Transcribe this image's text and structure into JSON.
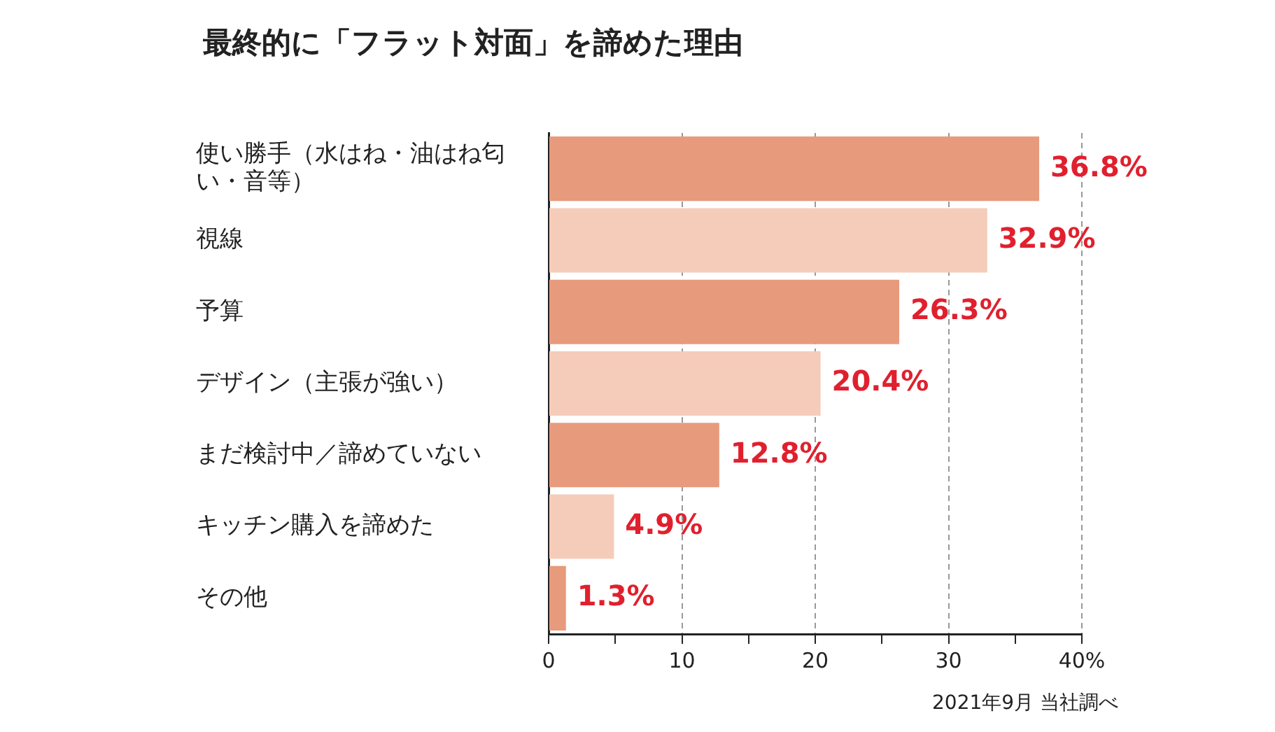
{
  "chart_data": {
    "type": "bar",
    "orientation": "horizontal",
    "title": "最終的に「フラット対面」を諦めた理由",
    "categories": [
      "使い勝手（水はね・油はね匂い・音等）",
      "視線",
      "予算",
      "デザイン（主張が強い）",
      "まだ検討中／諦めていない",
      "キッチン購入を諦めた",
      "その他"
    ],
    "values": [
      36.8,
      32.9,
      26.3,
      20.4,
      12.8,
      4.9,
      1.3
    ],
    "colors": [
      "#e89a7c",
      "#f5cbb9",
      "#e89a7c",
      "#f5cbb9",
      "#e89a7c",
      "#f5cbb9",
      "#e89a7c"
    ],
    "value_labels": [
      "36.8%",
      "32.9%",
      "26.3%",
      "20.4%",
      "12.8%",
      "4.9%",
      "1.3%"
    ],
    "xlim": [
      0,
      40
    ],
    "xticks": [
      0,
      {
        "value": 5,
        "label": null
      },
      10,
      {
        "value": 15,
        "label": null
      },
      20,
      {
        "value": 25,
        "label": null
      },
      30,
      {
        "value": 35,
        "label": null
      },
      {
        "value": 40,
        "label": "40%"
      }
    ],
    "grid": "x",
    "legend": false,
    "annotations": [
      "2021年9月 当社調べ"
    ]
  }
}
